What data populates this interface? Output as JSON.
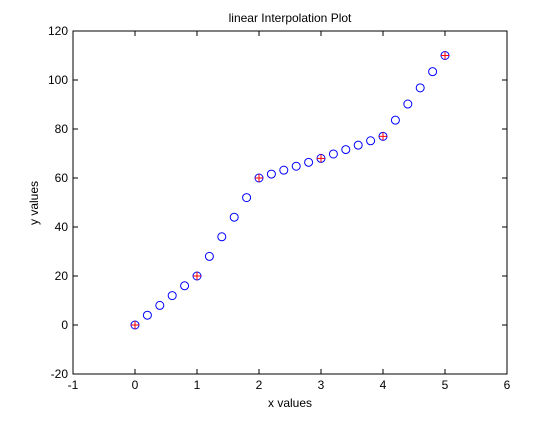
{
  "chart_data": {
    "type": "scatter",
    "title": "linear Interpolation Plot",
    "xlabel": "x values",
    "ylabel": "y values",
    "xlim": [
      -1,
      6
    ],
    "ylim": [
      -20,
      120
    ],
    "xticks": [
      -1,
      0,
      1,
      2,
      3,
      4,
      5,
      6
    ],
    "yticks": [
      -20,
      0,
      20,
      40,
      60,
      80,
      100,
      120
    ],
    "grid": false,
    "legend": "none",
    "series": [
      {
        "marker": "o",
        "color": "#0000ff",
        "x": [
          0,
          0.2,
          0.4,
          0.6,
          0.8,
          1.0,
          1.2,
          1.4,
          1.6,
          1.8,
          2.0,
          2.2,
          2.4,
          2.6,
          2.8,
          3.0,
          3.2,
          3.4,
          3.6,
          3.8,
          4.0,
          4.2,
          4.4,
          4.6,
          4.8,
          5.0
        ],
        "y": [
          0,
          4,
          8,
          12,
          16,
          20,
          28,
          36,
          44,
          52,
          60,
          61.6,
          63.2,
          64.8,
          66.4,
          68,
          69.8,
          71.6,
          73.4,
          75.2,
          77,
          83.6,
          90.2,
          96.8,
          103.4,
          110
        ]
      },
      {
        "marker": "+",
        "color": "#ff0000",
        "x": [
          0,
          1,
          2,
          3,
          4,
          5
        ],
        "y": [
          0,
          20,
          60,
          68,
          77,
          110
        ]
      }
    ]
  }
}
